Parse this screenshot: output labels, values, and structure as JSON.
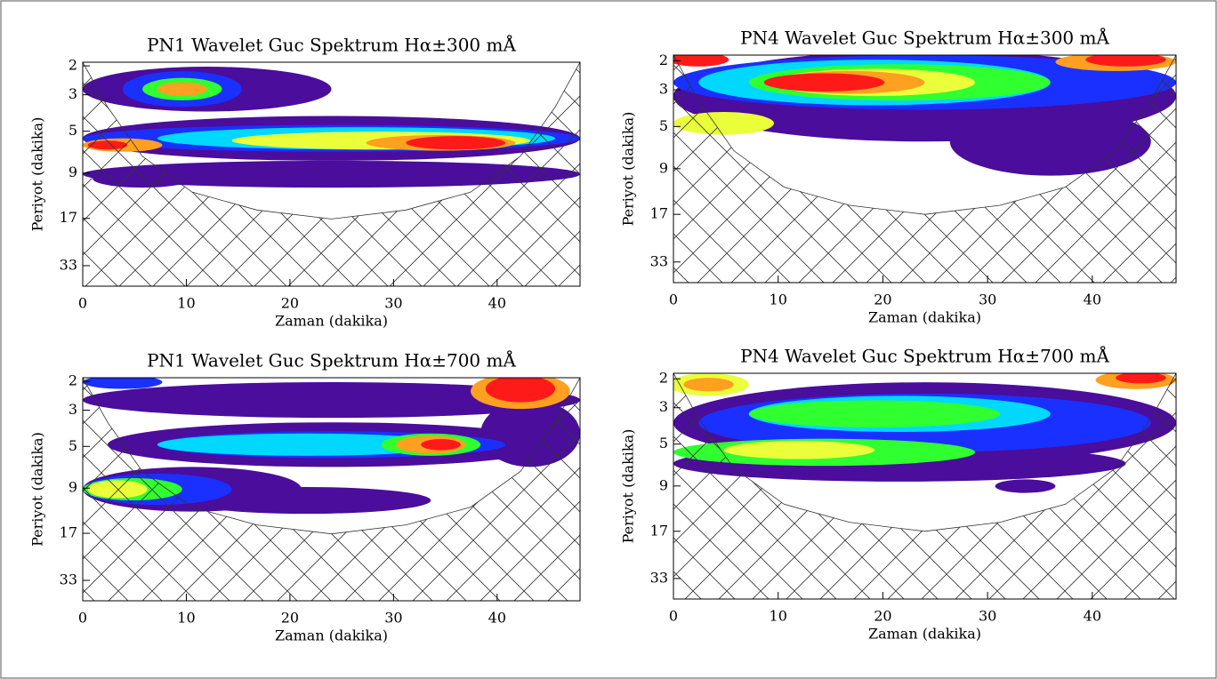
{
  "chart_data": [
    {
      "type": "contour",
      "title": "PN1 Wavelet Guc Spektrum Hα±300 mÅ",
      "xlabel": "Zaman (dakika)",
      "ylabel": "Periyot (dakika)",
      "xlim": [
        0,
        48
      ],
      "xticks": [
        0,
        10,
        20,
        30,
        40
      ],
      "ylim": [
        1.9,
        44
      ],
      "yticks": [
        2,
        3,
        5,
        9,
        17,
        33
      ],
      "y_log_scale": true,
      "y_inverted": true
    },
    {
      "type": "contour",
      "title": "PN4 Wavelet Guc Spektrum Hα±300 mÅ",
      "xlabel": "Zaman (dakika)",
      "ylabel": "Periyot (dakika)",
      "xlim": [
        0,
        48
      ],
      "xticks": [
        0,
        10,
        20,
        30,
        40
      ],
      "ylim": [
        1.85,
        44
      ],
      "yticks": [
        2,
        3,
        5,
        9,
        17,
        33
      ],
      "y_log_scale": true,
      "y_inverted": true
    },
    {
      "type": "contour",
      "title": "PN1 Wavelet Guc Spektrum Hα±700 mÅ",
      "xlabel": "Zaman (dakika)",
      "ylabel": "Periyot (dakika)",
      "xlim": [
        0,
        48
      ],
      "xticks": [
        0,
        10,
        20,
        30,
        40
      ],
      "ylim": [
        1.9,
        44
      ],
      "yticks": [
        2,
        3,
        5,
        9,
        17,
        33
      ],
      "y_log_scale": true,
      "y_inverted": true
    },
    {
      "type": "contour",
      "title": "PN4 Wavelet Guc Spektrum Hα±700 mÅ",
      "xlabel": "Zaman (dakika)",
      "ylabel": "Periyot (dakika)",
      "xlim": [
        0,
        48
      ],
      "xticks": [
        0,
        10,
        20,
        30,
        40
      ],
      "ylim": [
        1.85,
        44
      ],
      "yticks": [
        2,
        3,
        5,
        9,
        17,
        33
      ],
      "y_log_scale": true,
      "y_inverted": true
    }
  ]
}
